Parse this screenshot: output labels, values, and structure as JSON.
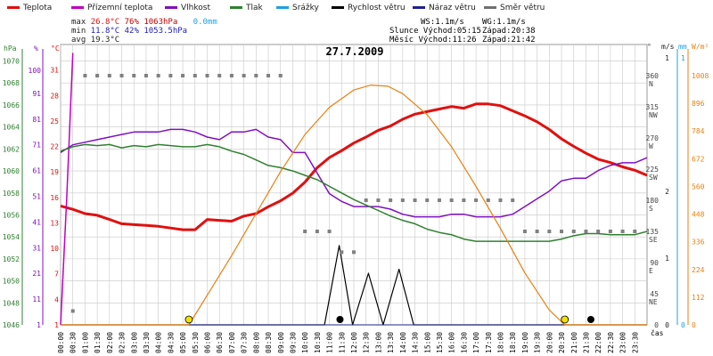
{
  "legend": [
    {
      "label": "Teplota",
      "color": "#e01010"
    },
    {
      "label": "Přízemní teplota",
      "color": "#c000c0"
    },
    {
      "label": "Vlhkost",
      "color": "#8010c0"
    },
    {
      "label": "Tlak",
      "color": "#308030"
    },
    {
      "label": "Srážky",
      "color": "#20a0e0"
    },
    {
      "label": "Rychlost větru",
      "color": "#000000"
    },
    {
      "label": "Náraz větru",
      "color": "#202090"
    },
    {
      "label": "Směr větru",
      "color": "#707070"
    }
  ],
  "stats": {
    "max": {
      "label": "max",
      "temp": "26.8°C",
      "hum": "76%",
      "press": "1063hPa",
      "rain": "0.0mm"
    },
    "min": {
      "label": "min",
      "temp": "11.8°C",
      "hum": "42%",
      "press": "1053.5hPa"
    },
    "avg": {
      "label": "avg",
      "temp": "19.3°C"
    }
  },
  "astro": {
    "ws": "WS:1.1m/s",
    "wg": "WG:1.1m/s",
    "sun_rise": "Slunce Východ:05:15",
    "sun_set": "Západ:20:38",
    "moon_rise": "Měsíc  Východ:11:26",
    "moon_set": "Západ:21:42"
  },
  "colors": {
    "grid": "#c8c8c8",
    "sun": "#e88010",
    "press_axis": "#308030",
    "rain_axis": "#20a0e0"
  },
  "chart_data": {
    "type": "line",
    "title": "27.7.2009",
    "xlabel": "čas",
    "x_hours_range": [
      0,
      24
    ],
    "x_ticks": [
      "00:00",
      "00:30",
      "01:00",
      "01:30",
      "02:00",
      "02:30",
      "03:00",
      "03:30",
      "04:00",
      "04:30",
      "05:00",
      "05:30",
      "06:00",
      "06:30",
      "07:00",
      "07:30",
      "08:00",
      "08:30",
      "09:00",
      "09:30",
      "10:00",
      "10:30",
      "11:00",
      "11:30",
      "12:00",
      "12:30",
      "13:00",
      "13:30",
      "14:00",
      "14:30",
      "15:00",
      "15:30",
      "16:00",
      "16:30",
      "17:00",
      "17:30",
      "18:00",
      "18:30",
      "19:00",
      "19:30",
      "20:00",
      "20:30",
      "21:00",
      "21:30",
      "22:00",
      "22:30",
      "23:00",
      "23:30"
    ],
    "axes": {
      "hpa": {
        "label": "hPa",
        "ticks": [
          "1070",
          "1068",
          "1066",
          "1064",
          "1062",
          "1060",
          "1058",
          "1056",
          "1054",
          "1052",
          "1050",
          "1048",
          "1046"
        ]
      },
      "pct": {
        "label": "%",
        "ticks": [
          "100",
          "91",
          "81",
          "71",
          "61",
          "51",
          "41",
          "31",
          "21",
          "11",
          "1"
        ]
      },
      "temp": {
        "label": "°C",
        "ticks": [
          "31",
          "28",
          "25",
          "22",
          "19",
          "16",
          "13",
          "10",
          "7",
          "4",
          "1"
        ]
      },
      "dir": {
        "label": "°",
        "ticks": [
          {
            "deg": "360",
            "dir": "N"
          },
          {
            "deg": "315",
            "dir": "NW"
          },
          {
            "deg": "270",
            "dir": "W"
          },
          {
            "deg": "225",
            "dir": "SW"
          },
          {
            "deg": "180",
            "dir": "S"
          },
          {
            "deg": "135",
            "dir": "SE"
          },
          {
            "deg": "90",
            "dir": "E"
          },
          {
            "deg": "45",
            "dir": "NE"
          },
          {
            "deg": "0",
            "dir": ""
          }
        ]
      },
      "ms": {
        "label": "m/s",
        "ticks": [
          "1",
          "2",
          "1",
          "0"
        ]
      },
      "mm": {
        "label": "mm",
        "ticks": [
          "1",
          "0"
        ]
      },
      "sun": {
        "label": "W/m²",
        "ticks": [
          "1008",
          "896",
          "784",
          "672",
          "560",
          "448",
          "336",
          "224",
          "112",
          "0"
        ]
      }
    },
    "series": [
      {
        "name": "Teplota",
        "unit": "°C",
        "x": [
          0,
          0.5,
          1,
          1.5,
          2,
          2.5,
          3,
          3.5,
          4,
          4.5,
          5,
          5.5,
          6,
          6.5,
          7,
          7.5,
          8,
          8.5,
          9,
          9.5,
          10,
          10.5,
          11,
          11.5,
          12,
          12.5,
          13,
          13.5,
          14,
          14.5,
          15,
          15.5,
          16,
          16.5,
          17,
          17.5,
          18,
          18.5,
          19,
          19.5,
          20,
          20.5,
          21,
          21.5,
          22,
          22.5,
          23,
          23.5,
          24
        ],
        "y": [
          15,
          14.6,
          14.1,
          13.9,
          13.4,
          12.9,
          12.8,
          12.7,
          12.6,
          12.4,
          12.2,
          12.2,
          13.4,
          13.3,
          13.2,
          13.8,
          14.1,
          14.9,
          15.6,
          16.5,
          17.8,
          19.5,
          20.7,
          21.5,
          22.4,
          23.1,
          23.9,
          24.4,
          25.2,
          25.8,
          26.1,
          26.4,
          26.7,
          26.5,
          27.0,
          27.0,
          26.8,
          26.2,
          25.6,
          24.9,
          24.0,
          22.9,
          22.0,
          21.2,
          20.5,
          20.1,
          19.6,
          19.2,
          18.6
        ]
      },
      {
        "name": "Přízemní teplota",
        "unit": "°C",
        "x": [
          0,
          0.25,
          0.5
        ],
        "y": [
          1,
          16,
          33
        ]
      },
      {
        "name": "Vlhkost",
        "unit": "%",
        "x": [
          0,
          0.5,
          1,
          1.5,
          2,
          2.5,
          3,
          3.5,
          4,
          4.5,
          5,
          5.5,
          6,
          6.5,
          7,
          7.5,
          8,
          8.5,
          9,
          9.5,
          10,
          10.5,
          11,
          11.5,
          12,
          12.5,
          13,
          13.5,
          14,
          14.5,
          15,
          15.5,
          16,
          16.5,
          17,
          17.5,
          18,
          18.5,
          19,
          19.5,
          20,
          20.5,
          21,
          21.5,
          22,
          22.5,
          23,
          23.5,
          24
        ],
        "y": [
          68,
          71,
          72,
          73,
          74,
          75,
          76,
          76,
          76,
          77,
          77,
          76,
          74,
          73,
          76,
          76,
          77,
          74,
          73,
          68,
          68,
          60,
          52,
          49,
          47,
          47,
          47,
          46,
          44,
          43,
          43,
          43,
          44,
          44,
          43,
          43,
          43,
          44,
          47,
          50,
          53,
          57,
          58,
          58,
          61,
          63,
          64,
          64,
          66
        ]
      },
      {
        "name": "Tlak",
        "unit": "hPa",
        "x": [
          0,
          0.5,
          1,
          1.5,
          2,
          2.5,
          3,
          3.5,
          4,
          4.5,
          5,
          5.5,
          6,
          6.5,
          7,
          7.5,
          8,
          8.5,
          9,
          9.5,
          10,
          10.5,
          11,
          11.5,
          12,
          12.5,
          13,
          13.5,
          14,
          14.5,
          15,
          15.5,
          16,
          16.5,
          17,
          17.5,
          18,
          18.5,
          19,
          19.5,
          20,
          20.5,
          21,
          21.5,
          22,
          22.5,
          23,
          23.5,
          24
        ],
        "y": [
          1061.8,
          1062.2,
          1062.4,
          1062.3,
          1062.4,
          1062.1,
          1062.3,
          1062.2,
          1062.4,
          1062.3,
          1062.2,
          1062.2,
          1062.4,
          1062.2,
          1061.8,
          1061.5,
          1061.0,
          1060.5,
          1060.3,
          1060.0,
          1059.6,
          1059.2,
          1058.6,
          1058.0,
          1057.4,
          1056.9,
          1056.4,
          1055.9,
          1055.5,
          1055.2,
          1054.7,
          1054.4,
          1054.2,
          1053.8,
          1053.6,
          1053.6,
          1053.6,
          1053.6,
          1053.6,
          1053.6,
          1053.6,
          1053.8,
          1054.1,
          1054.3,
          1054.3,
          1054.2,
          1054.2,
          1054.2,
          1054.5
        ]
      },
      {
        "name": "Srážky",
        "unit": "mm",
        "x": [
          0,
          24
        ],
        "y": [
          0,
          0
        ]
      },
      {
        "name": "Rychlost větru",
        "unit": "m/s",
        "x": [
          0,
          10.8,
          11.4,
          11.95,
          12.6,
          13.2,
          13.85,
          14.45,
          24
        ],
        "y": [
          0,
          0,
          1.0,
          0,
          0.65,
          0,
          0.7,
          0,
          0
        ]
      },
      {
        "name": "Náraz větru",
        "unit": "m/s",
        "x": [
          0,
          24
        ],
        "y": [
          0,
          0
        ]
      },
      {
        "name": "Směr větru",
        "unit": "°",
        "x": [
          0.5,
          1,
          1.5,
          2,
          2.5,
          3,
          3.5,
          4,
          4.5,
          5,
          5.5,
          6,
          6.5,
          7,
          7.5,
          8,
          8.5,
          9,
          10,
          10.5,
          11,
          11.5,
          12,
          12.5,
          13,
          13.5,
          14,
          14.5,
          15,
          15.5,
          16,
          16.5,
          17,
          17.5,
          18,
          18.5,
          19,
          19.5,
          20,
          20.5,
          21,
          21.5,
          22,
          22.5,
          23,
          23.5
        ],
        "y": [
          20,
          360,
          360,
          360,
          360,
          360,
          360,
          360,
          360,
          360,
          360,
          360,
          360,
          360,
          360,
          360,
          360,
          360,
          135,
          135,
          135,
          105,
          105,
          180,
          180,
          180,
          180,
          180,
          180,
          180,
          180,
          180,
          180,
          180,
          180,
          180,
          135,
          135,
          135,
          135,
          135,
          135,
          135,
          135,
          135,
          135
        ]
      },
      {
        "name": "Sluneční svit",
        "unit": "W/m²",
        "x": [
          0,
          5.25,
          6,
          7,
          8,
          9,
          10,
          11,
          12,
          12.7,
          13.4,
          14,
          15,
          16,
          17,
          18,
          19,
          20,
          20.63,
          24
        ],
        "y": [
          0,
          0,
          120,
          280,
          450,
          620,
          770,
          880,
          950,
          970,
          965,
          935,
          850,
          720,
          560,
          390,
          210,
          60,
          0,
          0
        ]
      }
    ]
  }
}
